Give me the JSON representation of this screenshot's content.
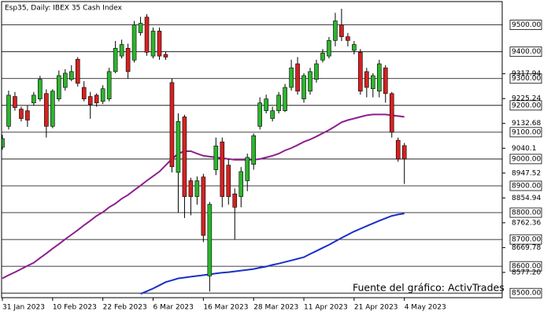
{
  "chart_data": {
    "type": "candlestick",
    "title": "Esp35, Daily:  IBEX 35 Cash Index",
    "annotation": "Fuente del gráfico: ActivTrades",
    "categories": [
      "31 Jan 2023",
      null,
      null,
      null,
      null,
      null,
      null,
      null,
      "10 Feb 2023",
      null,
      null,
      null,
      null,
      null,
      null,
      null,
      "22 Feb 2023",
      null,
      null,
      null,
      null,
      null,
      null,
      null,
      "6 Mar 2023",
      null,
      null,
      null,
      null,
      null,
      null,
      null,
      "16 Mar 2023",
      null,
      null,
      null,
      null,
      null,
      null,
      null,
      "28 Mar 2023",
      null,
      null,
      null,
      null,
      null,
      null,
      null,
      "11 Apr 2023",
      null,
      null,
      null,
      null,
      null,
      null,
      null,
      "21 Apr 2023",
      null,
      null,
      null,
      null,
      null,
      null,
      null,
      "4 May 2023"
    ],
    "open": [
      9044,
      9122,
      9233,
      9186,
      9180,
      9209,
      9224,
      9244,
      9122,
      9224,
      9267,
      9297,
      9372,
      9267,
      9233,
      9238,
      9215,
      9224,
      9326,
      9384,
      9413,
      9369,
      9471,
      9529,
      9384,
      9477,
      9390,
      9285,
      8950,
      9157,
      8919,
      8860,
      8933,
      8564,
      8960,
      9064,
      8977,
      8870,
      8860,
      8919,
      8980,
      9122,
      9180,
      9151,
      9180,
      9180,
      9267,
      9355,
      9224,
      9253,
      9297,
      9369,
      9384,
      9442,
      9500,
      9456,
      9405,
      9398,
      9326,
      9262,
      9253,
      9340,
      9244,
      9070,
      9050
    ],
    "high": [
      9090,
      9255,
      9250,
      9195,
      9200,
      9250,
      9310,
      9260,
      9260,
      9330,
      9335,
      9350,
      9380,
      9290,
      9250,
      9245,
      9275,
      9340,
      9440,
      9445,
      9430,
      9515,
      9530,
      9540,
      9490,
      9490,
      9400,
      9300,
      9170,
      9165,
      8930,
      8935,
      8945,
      8840,
      9080,
      9080,
      9000,
      8890,
      8970,
      9020,
      9095,
      9230,
      9240,
      9195,
      9250,
      9280,
      9370,
      9380,
      9320,
      9340,
      9370,
      9410,
      9455,
      9545,
      9560,
      9470,
      9440,
      9410,
      9340,
      9320,
      9370,
      9350,
      9250,
      9080,
      9060
    ],
    "low": [
      9035,
      9110,
      9180,
      9140,
      9120,
      9200,
      9215,
      9080,
      9115,
      9215,
      9255,
      9290,
      9270,
      9215,
      9150,
      9195,
      9205,
      9215,
      9320,
      9375,
      9300,
      9360,
      9460,
      9385,
      9375,
      9370,
      9370,
      8950,
      8800,
      8780,
      8790,
      8830,
      8690,
      8506,
      8940,
      8820,
      8830,
      8700,
      8820,
      8880,
      8960,
      9110,
      9170,
      9140,
      9170,
      9175,
      9255,
      9240,
      9210,
      9240,
      9285,
      9360,
      9375,
      9420,
      9440,
      9420,
      9390,
      9240,
      9230,
      9230,
      9230,
      9210,
      9080,
      8990,
      8907
    ],
    "close": [
      9076,
      9238,
      9192,
      9151,
      9145,
      9238,
      9297,
      9122,
      9253,
      9311,
      9320,
      9326,
      9282,
      9224,
      9203,
      9209,
      9262,
      9326,
      9413,
      9427,
      9326,
      9500,
      9506,
      9398,
      9477,
      9384,
      9380,
      8971,
      9140,
      8860,
      8860,
      8919,
      8715,
      8831,
      9049,
      8860,
      8860,
      8820,
      8953,
      9006,
      9087,
      9209,
      9224,
      9180,
      9238,
      9267,
      9340,
      9253,
      9311,
      9326,
      9355,
      9395,
      9442,
      9515,
      9456,
      9442,
      9427,
      9253,
      9267,
      9311,
      9355,
      9244,
      9100,
      9000,
      9000
    ],
    "up_color": "#2db52d",
    "down_color": "#d42222",
    "ma_lines": [
      {
        "color": "#8e1f8e",
        "values": [
          8555,
          8567,
          8578,
          8590,
          8602,
          8613,
          8631,
          8648,
          8666,
          8683,
          8701,
          8718,
          8735,
          8753,
          8770,
          8788,
          8802,
          8820,
          8834,
          8852,
          8866,
          8884,
          8901,
          8919,
          8936,
          8953,
          8977,
          9000,
          9020,
          9029,
          9029,
          9020,
          9012,
          9009,
          9006,
          9003,
          9000,
          8997,
          8997,
          8997,
          8997,
          9000,
          9006,
          9012,
          9020,
          9032,
          9041,
          9052,
          9064,
          9073,
          9084,
          9096,
          9108,
          9122,
          9137,
          9145,
          9151,
          9157,
          9163,
          9166,
          9166,
          9166,
          9163,
          9160,
          9157
        ]
      },
      {
        "color": "#1a2fc8",
        "values": [
          null,
          null,
          null,
          null,
          null,
          null,
          null,
          null,
          null,
          null,
          null,
          null,
          null,
          null,
          null,
          null,
          null,
          null,
          null,
          null,
          null,
          null,
          8497,
          8507,
          8517,
          8529,
          8541,
          8548,
          8555,
          8558,
          8561,
          8564,
          8567,
          8570,
          8573,
          8576,
          8578,
          8581,
          8584,
          8587,
          8590,
          8595,
          8599,
          8605,
          8610,
          8616,
          8622,
          8628,
          8634,
          8646,
          8657,
          8669,
          8680,
          8693,
          8706,
          8718,
          8730,
          8740,
          8750,
          8760,
          8770,
          8779,
          8788,
          8793,
          8797
        ]
      }
    ],
    "ylim": [
      8483,
      9587
    ],
    "yticks": [
      {
        "value": 9500,
        "label": "9500.00"
      },
      {
        "value": 9400,
        "label": "9400.00"
      },
      {
        "value": 9300,
        "label": "9300.00"
      },
      {
        "value": 9200,
        "label": "9200.00"
      },
      {
        "value": 9100,
        "label": "9100.00"
      },
      {
        "value": 9000,
        "label": "9000.00"
      },
      {
        "value": 8900,
        "label": "8900.00"
      },
      {
        "value": 8800,
        "label": "8800.00"
      },
      {
        "value": 8700,
        "label": "8700.00"
      },
      {
        "value": 8600,
        "label": "8600.00"
      },
      {
        "value": 8500,
        "label": "8500.00"
      }
    ],
    "yticks_minor": [
      9317.94,
      9225.24,
      9132.68,
      9040.1,
      8947.52,
      8854.94,
      8762.36,
      8669.78,
      {
        "value": 8577.2,
        "label": "8577.20"
      }
    ],
    "grid": true
  }
}
